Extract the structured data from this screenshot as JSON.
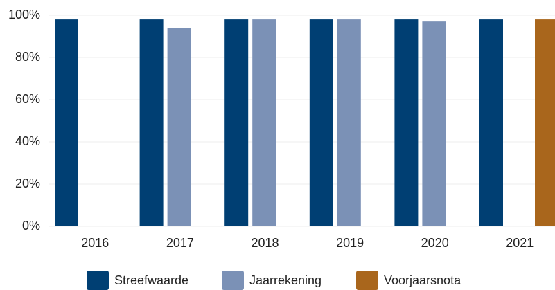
{
  "chart_data": {
    "type": "bar",
    "categories": [
      "2016",
      "2017",
      "2018",
      "2019",
      "2020",
      "2021"
    ],
    "series": [
      {
        "name": "Streefwaarde",
        "color": "#003f73",
        "values": [
          98,
          98,
          98,
          98,
          98,
          98
        ]
      },
      {
        "name": "Jaarrekening",
        "color": "#7b91b6",
        "values": [
          null,
          94,
          98,
          98,
          97,
          null
        ]
      },
      {
        "name": "Voorjaarsnota",
        "color": "#a9661c",
        "values": [
          null,
          null,
          null,
          null,
          null,
          98
        ]
      }
    ],
    "ylim": [
      0,
      100
    ],
    "yticks": [
      {
        "value": 0,
        "label": "0%"
      },
      {
        "value": 20,
        "label": "20%"
      },
      {
        "value": 40,
        "label": "40%"
      },
      {
        "value": 60,
        "label": "60%"
      },
      {
        "value": 80,
        "label": "80%"
      },
      {
        "value": 100,
        "label": "100%"
      }
    ],
    "grid": true,
    "legend": "bottom"
  }
}
